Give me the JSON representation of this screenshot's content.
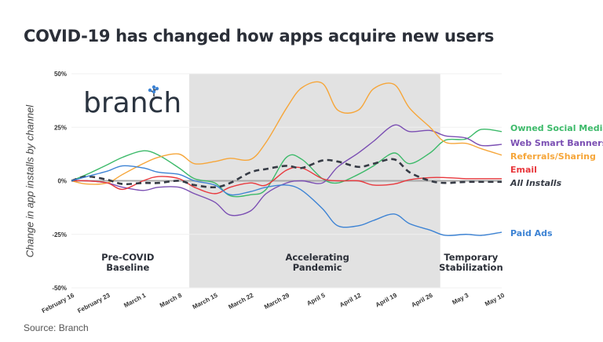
{
  "chart_data": {
    "type": "line",
    "title": "COVID-19 has changed how apps acquire new users",
    "ylabel": "Change in app installs by channel",
    "xlabel": "",
    "source": "Source: Branch",
    "logo_text": "branch",
    "ylim": [
      -50,
      50
    ],
    "y_ticks": [
      "50%",
      "25%",
      "0%",
      "-25%",
      "-50%"
    ],
    "y_tick_values": [
      50,
      25,
      0,
      -25,
      -50
    ],
    "x_ticks": [
      "February 16",
      "February 23",
      "March 1",
      "March 8",
      "March 15",
      "March 22",
      "March 29",
      "April 5",
      "April 12",
      "April 19",
      "April 26",
      "May 3",
      "May 10"
    ],
    "grid": true,
    "shaded_region": {
      "start": "March 10",
      "end": "April 28",
      "color": "#e2e2e2"
    },
    "periods": [
      {
        "line1": "Pre-COVID",
        "line2": "Baseline",
        "center": "February 27"
      },
      {
        "line1": "Accelerating",
        "line2": "Pandemic",
        "center": "April 4"
      },
      {
        "line1": "Temporary",
        "line2": "Stabilization",
        "center": "May 4"
      }
    ],
    "x": [
      "February 16",
      "February 19",
      "February 23",
      "February 26",
      "March 1",
      "March 4",
      "March 8",
      "March 11",
      "March 15",
      "March 18",
      "March 22",
      "March 25",
      "March 29",
      "April 1",
      "April 5",
      "April 8",
      "April 12",
      "April 15",
      "April 19",
      "April 22",
      "April 26",
      "April 29",
      "May 3",
      "May 6",
      "May 10"
    ],
    "series": [
      {
        "name": "Owned Social Media",
        "color": "#3dba6a",
        "dashed": false,
        "values": [
          0,
          3,
          7.5,
          11,
          14,
          12,
          6,
          1,
          -1,
          -7,
          -6.5,
          -4,
          11,
          10,
          1,
          -1,
          3,
          7,
          13,
          8,
          13,
          19,
          19.5,
          24,
          23
        ]
      },
      {
        "name": "Web Smart Banners",
        "color": "#7b4fb3",
        "dashed": false,
        "values": [
          0,
          0,
          -1,
          -3,
          -4.5,
          -3,
          -3,
          -6,
          -10,
          -16,
          -14,
          -6,
          -1,
          0,
          -1,
          6.5,
          13,
          18.5,
          26,
          23,
          23.5,
          21,
          20,
          16.5,
          17
        ]
      },
      {
        "name": "Referrals/Sharing",
        "color": "#f6a63a",
        "dashed": false,
        "values": [
          0,
          -1.5,
          -1,
          3,
          8,
          11,
          12.5,
          8,
          9,
          10.5,
          10,
          18,
          34,
          43.5,
          45.5,
          33,
          33,
          43,
          45,
          34,
          25,
          18,
          17.5,
          15,
          12
        ]
      },
      {
        "name": "Email",
        "color": "#e8383d",
        "dashed": false,
        "values": [
          0,
          0,
          -1,
          -4,
          0,
          2,
          1,
          -3,
          -6,
          -3,
          -1,
          -2,
          5,
          6,
          1,
          0,
          0,
          -2,
          -1.5,
          0.5,
          1.5,
          1.5,
          1,
          1,
          1
        ]
      },
      {
        "name": "All Installs",
        "color": "#363b45",
        "dashed": true,
        "values": [
          0,
          2,
          0.5,
          -1.5,
          -1,
          -1,
          0,
          -2,
          -3,
          -1,
          4,
          5.5,
          7,
          6,
          9.5,
          9,
          6.5,
          8,
          10,
          4,
          0,
          -1,
          -0.5,
          -0.5,
          -0.5
        ]
      },
      {
        "name": "Paid Ads",
        "color": "#3d83d4",
        "dashed": false,
        "values": [
          0,
          2,
          4.5,
          7,
          6,
          4,
          3,
          0,
          -2,
          -6.5,
          -5,
          -3,
          -2,
          -4.5,
          -13,
          -21,
          -21,
          -18.5,
          -15.5,
          -20,
          -23,
          -25.5,
          -25,
          -25.5,
          -24
        ]
      }
    ]
  }
}
